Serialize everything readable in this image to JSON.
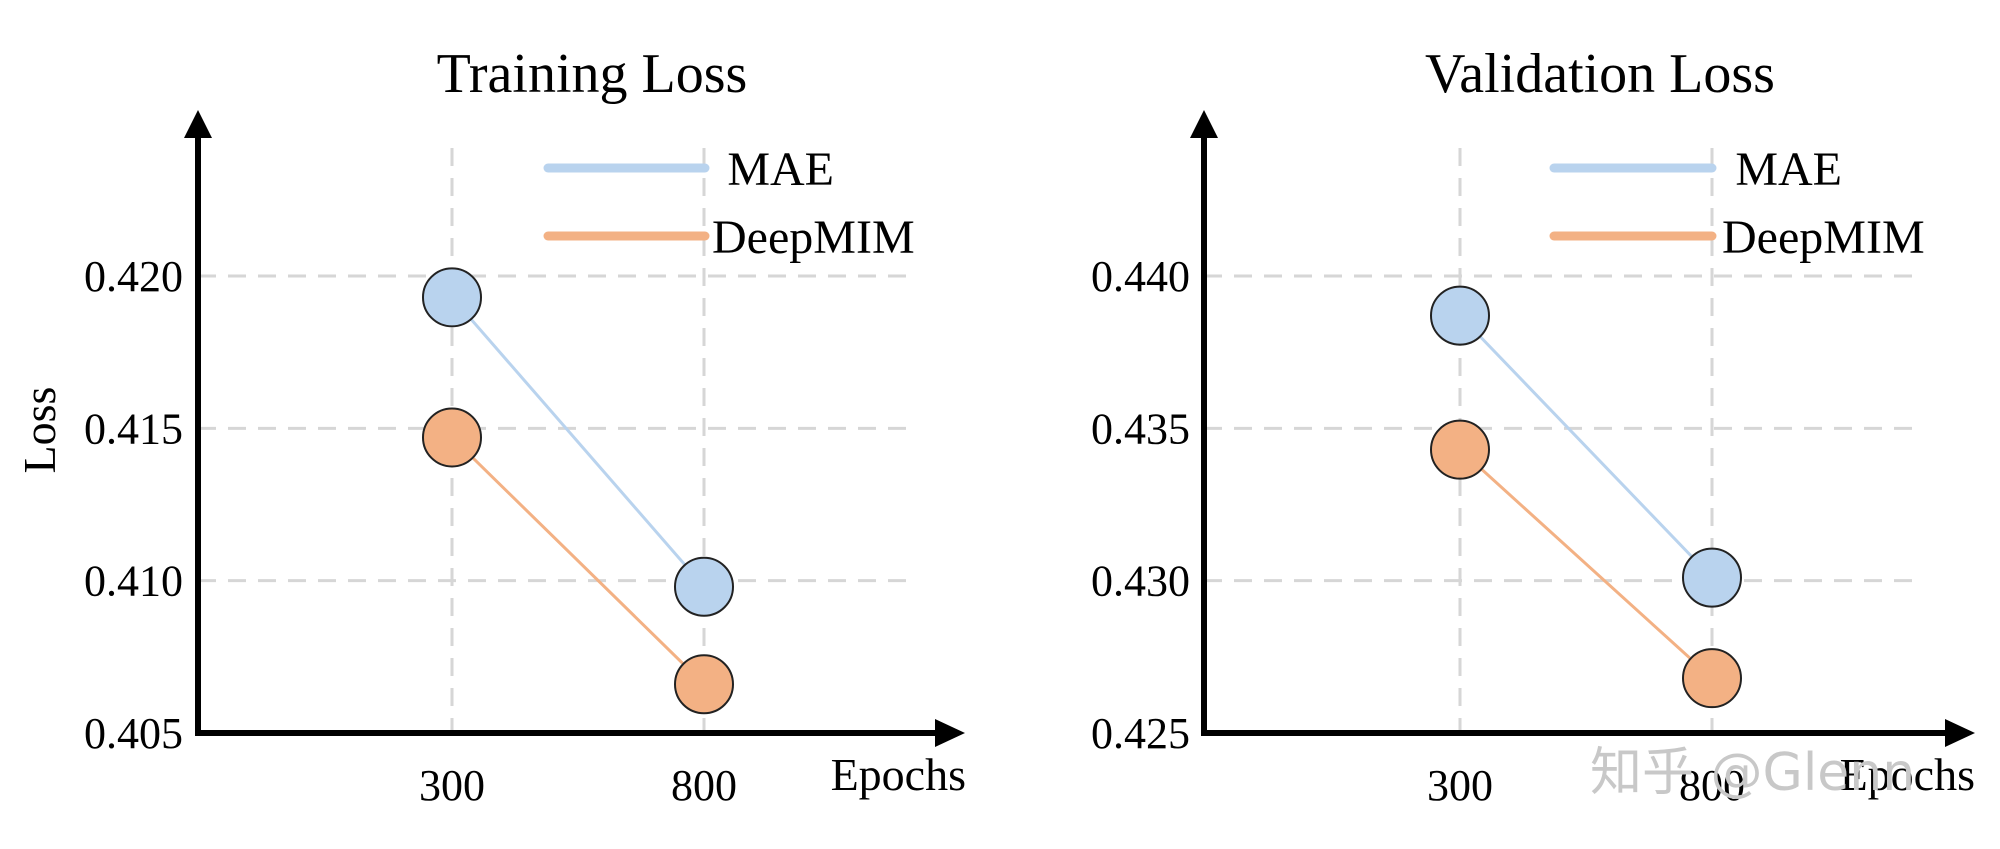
{
  "chart_data": [
    {
      "type": "line",
      "title": "Training Loss",
      "xlabel": "Epochs",
      "ylabel": "Loss",
      "categories": [
        "300",
        "800"
      ],
      "yticks": [
        "0.405",
        "0.410",
        "0.415",
        "0.420"
      ],
      "ylim": [
        0.405,
        0.4235
      ],
      "series": [
        {
          "name": "MAE",
          "values": [
            0.4193,
            0.4098
          ],
          "color": "#b9d3ee"
        },
        {
          "name": "DeepMIM",
          "values": [
            0.4147,
            0.4066
          ],
          "color": "#f3b184"
        }
      ],
      "legend": "top-right",
      "grid": true
    },
    {
      "type": "line",
      "title": "Validation Loss",
      "xlabel": "Epochs",
      "ylabel": "",
      "categories": [
        "300",
        "800"
      ],
      "yticks": [
        "0.425",
        "0.430",
        "0.435",
        "0.440"
      ],
      "ylim": [
        0.425,
        0.4435
      ],
      "series": [
        {
          "name": "MAE",
          "values": [
            0.4387,
            0.4301
          ],
          "color": "#b9d3ee"
        },
        {
          "name": "DeepMIM",
          "values": [
            0.4343,
            0.4268
          ],
          "color": "#f3b184"
        }
      ],
      "legend": "top-right",
      "grid": true
    }
  ],
  "watermark": "知乎 @Glenn"
}
